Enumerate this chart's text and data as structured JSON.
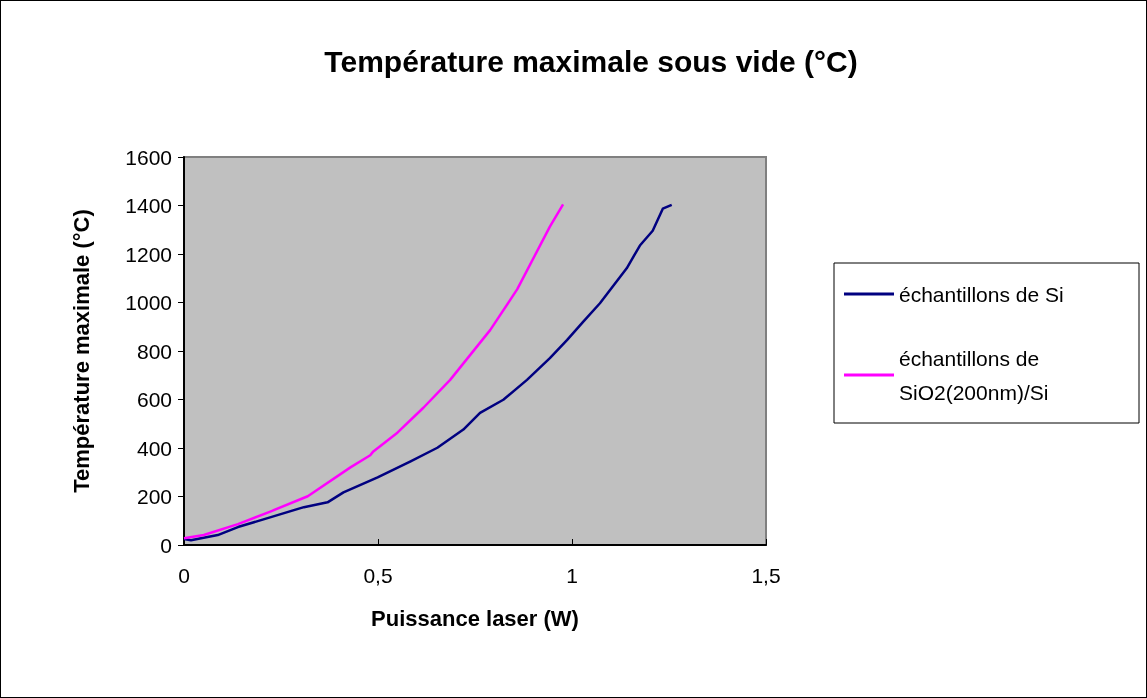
{
  "chart_data": {
    "type": "line",
    "title": "Température maximale sous vide (°C)",
    "xlabel": "Puissance laser (W)",
    "ylabel": "Température maximale (°C)",
    "xlim": [
      0,
      1.5
    ],
    "xticks": [
      0,
      {
        "value": 0.5,
        "label": "0,5"
      },
      1,
      {
        "value": 1.5,
        "label": "1,5"
      }
    ],
    "ylim": [
      0,
      1600
    ],
    "yticks": [
      0,
      200,
      400,
      600,
      800,
      1000,
      1200,
      1400,
      1600
    ],
    "grid": false,
    "legend": "right",
    "marker": "none",
    "line_style": "solid",
    "series": [
      {
        "name": "échantillons de Si",
        "color": "#000080",
        "x": [
          0,
          0.018,
          0.087,
          0.139,
          0.224,
          0.309,
          0.37,
          0.411,
          0.499,
          0.584,
          0.653,
          0.72,
          0.763,
          0.823,
          0.884,
          0.943,
          0.987,
          1.028,
          1.072,
          1.141,
          1.175,
          1.208,
          1.234,
          1.257
        ],
        "values": [
          25,
          20,
          41,
          74,
          115,
          156,
          176,
          217,
          279,
          345,
          401,
          476,
          545,
          599,
          681,
          771,
          845,
          919,
          997,
          1141,
          1235,
          1296,
          1387,
          1403
        ]
      },
      {
        "name": "échantillons de SiO2(200nm)/Si",
        "color": "#ff00ff",
        "x": [
          0,
          0.051,
          0.139,
          0.224,
          0.319,
          0.429,
          0.48,
          0.488,
          0.55,
          0.617,
          0.686,
          0.789,
          0.859,
          0.943,
          0.977
        ],
        "values": [
          28,
          41,
          86,
          139,
          201,
          320,
          370,
          386,
          463,
          566,
          681,
          886,
          1055,
          1313,
          1405
        ]
      }
    ]
  }
}
